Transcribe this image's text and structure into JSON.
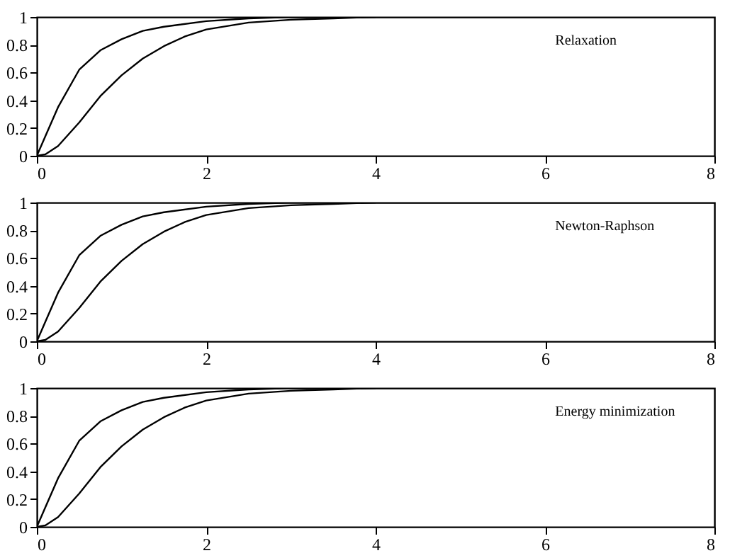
{
  "chart_data": [
    {
      "type": "line",
      "xlim": [
        0,
        8
      ],
      "xticks": [
        0,
        2,
        4,
        6,
        8
      ],
      "ylim": [
        0,
        1
      ],
      "yticks": [
        0,
        0.2,
        0.4,
        0.6,
        0.8,
        1
      ],
      "annotations": [
        "Relaxation"
      ],
      "series": [
        {
          "color": "#000000",
          "x": [
            0,
            0.1,
            0.25,
            0.5,
            0.75,
            1,
            1.25,
            1.5,
            2,
            2.5,
            3,
            4,
            8
          ],
          "values": [
            0,
            0.14,
            0.35,
            0.62,
            0.76,
            0.84,
            0.9,
            0.93,
            0.97,
            0.99,
            1,
            1,
            1
          ]
        },
        {
          "color": "#000000",
          "x": [
            0,
            0.1,
            0.25,
            0.5,
            0.75,
            1,
            1.25,
            1.5,
            1.75,
            2,
            2.5,
            3,
            3.5,
            4
          ],
          "values": [
            0,
            0.01,
            0.07,
            0.24,
            0.43,
            0.58,
            0.7,
            0.79,
            0.86,
            0.91,
            0.96,
            0.98,
            0.99,
            1
          ]
        }
      ]
    },
    {
      "type": "line",
      "xlim": [
        0,
        8
      ],
      "xticks": [
        0,
        2,
        4,
        6,
        8
      ],
      "ylim": [
        0,
        1
      ],
      "yticks": [
        0,
        0.2,
        0.4,
        0.6,
        0.8,
        1
      ],
      "annotations": [
        "Newton-Raphson"
      ],
      "series": [
        {
          "color": "#000000",
          "x": [
            0,
            0.1,
            0.25,
            0.5,
            0.75,
            1,
            1.25,
            1.5,
            2,
            2.5,
            3,
            4,
            8
          ],
          "values": [
            0,
            0.14,
            0.35,
            0.62,
            0.76,
            0.84,
            0.9,
            0.93,
            0.97,
            0.99,
            1,
            1,
            1
          ]
        },
        {
          "color": "#000000",
          "x": [
            0,
            0.1,
            0.25,
            0.5,
            0.75,
            1,
            1.25,
            1.5,
            1.75,
            2,
            2.5,
            3,
            3.5,
            4
          ],
          "values": [
            0,
            0.01,
            0.07,
            0.24,
            0.43,
            0.58,
            0.7,
            0.79,
            0.86,
            0.91,
            0.96,
            0.98,
            0.99,
            1
          ]
        }
      ]
    },
    {
      "type": "line",
      "xlim": [
        0,
        8
      ],
      "xticks": [
        0,
        2,
        4,
        6,
        8
      ],
      "ylim": [
        0,
        1
      ],
      "yticks": [
        0,
        0.2,
        0.4,
        0.6,
        0.8,
        1
      ],
      "annotations": [
        "Energy minimization"
      ],
      "series": [
        {
          "color": "#000000",
          "x": [
            0,
            0.1,
            0.25,
            0.5,
            0.75,
            1,
            1.25,
            1.5,
            2,
            2.5,
            3,
            4,
            8
          ],
          "values": [
            0,
            0.14,
            0.35,
            0.62,
            0.76,
            0.84,
            0.9,
            0.93,
            0.97,
            0.99,
            1,
            1,
            1
          ]
        },
        {
          "color": "#000000",
          "x": [
            0,
            0.1,
            0.25,
            0.5,
            0.75,
            1,
            1.25,
            1.5,
            1.75,
            2,
            2.5,
            3,
            3.5,
            4
          ],
          "values": [
            0,
            0.01,
            0.07,
            0.24,
            0.43,
            0.58,
            0.7,
            0.79,
            0.86,
            0.91,
            0.96,
            0.98,
            0.99,
            1
          ]
        }
      ]
    }
  ]
}
